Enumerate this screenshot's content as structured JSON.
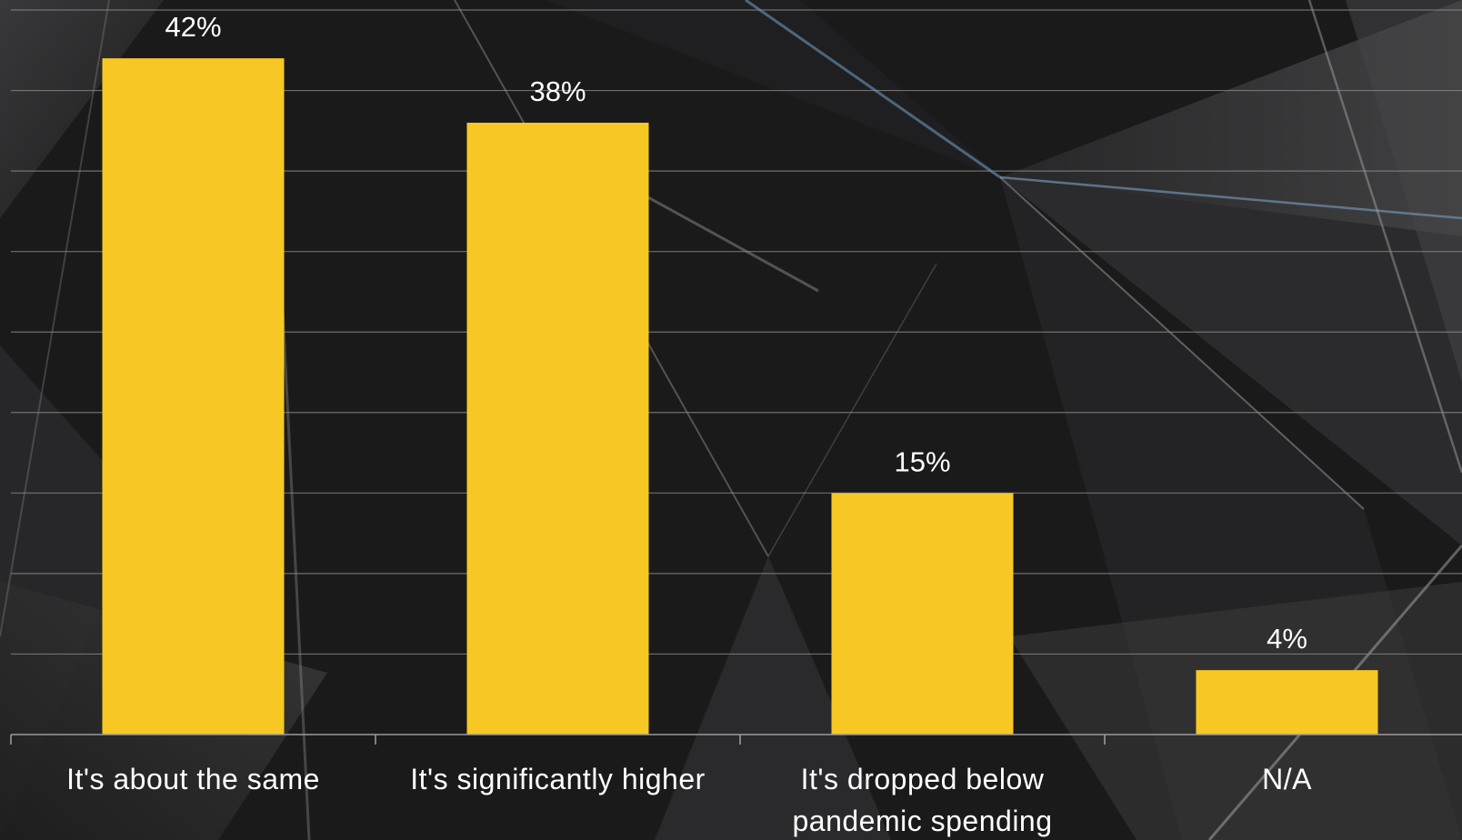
{
  "colors": {
    "background": "#1a1a1b",
    "bar": "#f7c824",
    "text": "#ffffff",
    "grid": "#8a8a8a"
  },
  "chart_data": {
    "type": "bar",
    "categories": [
      "It's about the same",
      "It's significantly higher",
      "It's dropped below pandemic spending",
      "N/A"
    ],
    "category_lines": [
      [
        "It's about the same"
      ],
      [
        "It's significantly higher"
      ],
      [
        "It's dropped below",
        "pandemic spending"
      ],
      [
        "N/A"
      ]
    ],
    "values": [
      42,
      38,
      15,
      4
    ],
    "data_labels": [
      "42%",
      "38%",
      "15%",
      "4%"
    ],
    "unit": "%",
    "ylim": [
      0,
      45
    ],
    "grid": true,
    "legend": "none",
    "title": "",
    "xlabel": "",
    "ylabel": ""
  }
}
